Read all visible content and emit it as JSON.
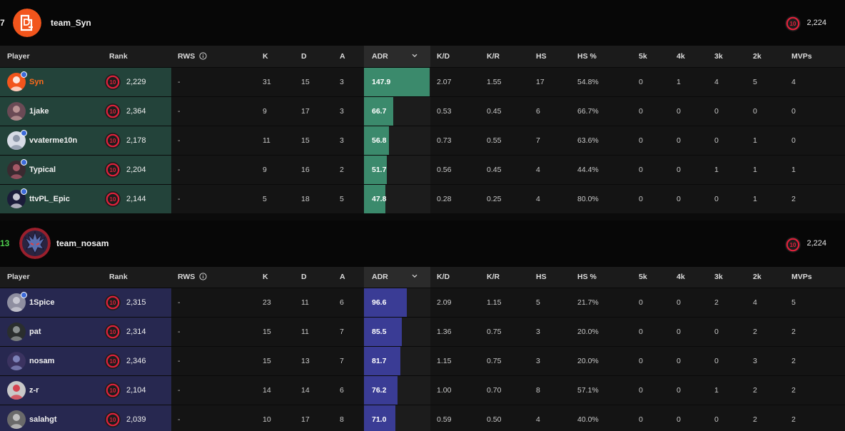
{
  "columns": [
    "Player",
    "Rank",
    "RWS",
    "K",
    "D",
    "A",
    "ADR",
    "K/D",
    "K/R",
    "HS",
    "HS %",
    "5k",
    "4k",
    "3k",
    "2k",
    "MVPs"
  ],
  "adr_max": 150,
  "colors": {
    "team1_row": "#23433a",
    "team1_bar": "#3b8a6c",
    "team2_row": "#272850",
    "team2_bar": "#3a3c95",
    "orange": "#ff5a10",
    "score_green": "#4ed04e",
    "level_ring": "#e0213b"
  },
  "teams": [
    {
      "score": "7",
      "name": "team_Syn",
      "elo": "2,224",
      "level_icon": "level-10-icon",
      "players": [
        {
          "name": "Syn",
          "highlight": true,
          "verified": true,
          "elo": "2,229",
          "rws": "-",
          "k": "31",
          "d": "15",
          "a": "3",
          "adr": "147.9",
          "kd": "2.07",
          "kr": "1.55",
          "hs": "17",
          "hs_pct": "54.8%",
          "k5": "0",
          "k4": "1",
          "k3": "4",
          "k2": "5",
          "mvps": "4"
        },
        {
          "name": "1jake",
          "highlight": false,
          "verified": false,
          "elo": "2,364",
          "rws": "-",
          "k": "9",
          "d": "17",
          "a": "3",
          "adr": "66.7",
          "kd": "0.53",
          "kr": "0.45",
          "hs": "6",
          "hs_pct": "66.7%",
          "k5": "0",
          "k4": "0",
          "k3": "0",
          "k2": "0",
          "mvps": "0"
        },
        {
          "name": "vvaterme10n",
          "highlight": false,
          "verified": true,
          "elo": "2,178",
          "rws": "-",
          "k": "11",
          "d": "15",
          "a": "3",
          "adr": "56.8",
          "kd": "0.73",
          "kr": "0.55",
          "hs": "7",
          "hs_pct": "63.6%",
          "k5": "0",
          "k4": "0",
          "k3": "0",
          "k2": "1",
          "mvps": "0"
        },
        {
          "name": "Typical",
          "highlight": false,
          "verified": true,
          "elo": "2,204",
          "rws": "-",
          "k": "9",
          "d": "16",
          "a": "2",
          "adr": "51.7",
          "kd": "0.56",
          "kr": "0.45",
          "hs": "4",
          "hs_pct": "44.4%",
          "k5": "0",
          "k4": "0",
          "k3": "1",
          "k2": "1",
          "mvps": "1"
        },
        {
          "name": "ttvPL_Epic",
          "highlight": false,
          "verified": true,
          "elo": "2,144",
          "rws": "-",
          "k": "5",
          "d": "18",
          "a": "5",
          "adr": "47.8",
          "kd": "0.28",
          "kr": "0.25",
          "hs": "4",
          "hs_pct": "80.0%",
          "k5": "0",
          "k4": "0",
          "k3": "0",
          "k2": "1",
          "mvps": "2"
        }
      ]
    },
    {
      "score": "13",
      "name": "team_nosam",
      "elo": "2,224",
      "level_icon": "level-10-icon",
      "players": [
        {
          "name": "1Spice",
          "highlight": false,
          "verified": true,
          "elo": "2,315",
          "rws": "-",
          "k": "23",
          "d": "11",
          "a": "6",
          "adr": "96.6",
          "kd": "2.09",
          "kr": "1.15",
          "hs": "5",
          "hs_pct": "21.7%",
          "k5": "0",
          "k4": "0",
          "k3": "2",
          "k2": "4",
          "mvps": "5"
        },
        {
          "name": "pat",
          "highlight": false,
          "verified": false,
          "elo": "2,314",
          "rws": "-",
          "k": "15",
          "d": "11",
          "a": "7",
          "adr": "85.5",
          "kd": "1.36",
          "kr": "0.75",
          "hs": "3",
          "hs_pct": "20.0%",
          "k5": "0",
          "k4": "0",
          "k3": "0",
          "k2": "2",
          "mvps": "2"
        },
        {
          "name": "nosam",
          "highlight": false,
          "verified": false,
          "elo": "2,346",
          "rws": "-",
          "k": "15",
          "d": "13",
          "a": "7",
          "adr": "81.7",
          "kd": "1.15",
          "kr": "0.75",
          "hs": "3",
          "hs_pct": "20.0%",
          "k5": "0",
          "k4": "0",
          "k3": "0",
          "k2": "3",
          "mvps": "2"
        },
        {
          "name": "z-r",
          "highlight": false,
          "verified": false,
          "elo": "2,104",
          "rws": "-",
          "k": "14",
          "d": "14",
          "a": "6",
          "adr": "76.2",
          "kd": "1.00",
          "kr": "0.70",
          "hs": "8",
          "hs_pct": "57.1%",
          "k5": "0",
          "k4": "0",
          "k3": "1",
          "k2": "2",
          "mvps": "2"
        },
        {
          "name": "salahgt",
          "highlight": false,
          "verified": false,
          "elo": "2,039",
          "rws": "-",
          "k": "10",
          "d": "17",
          "a": "8",
          "adr": "71.0",
          "kd": "0.59",
          "kr": "0.50",
          "hs": "4",
          "hs_pct": "40.0%",
          "k5": "0",
          "k4": "0",
          "k3": "0",
          "k2": "2",
          "mvps": "2"
        }
      ]
    }
  ]
}
